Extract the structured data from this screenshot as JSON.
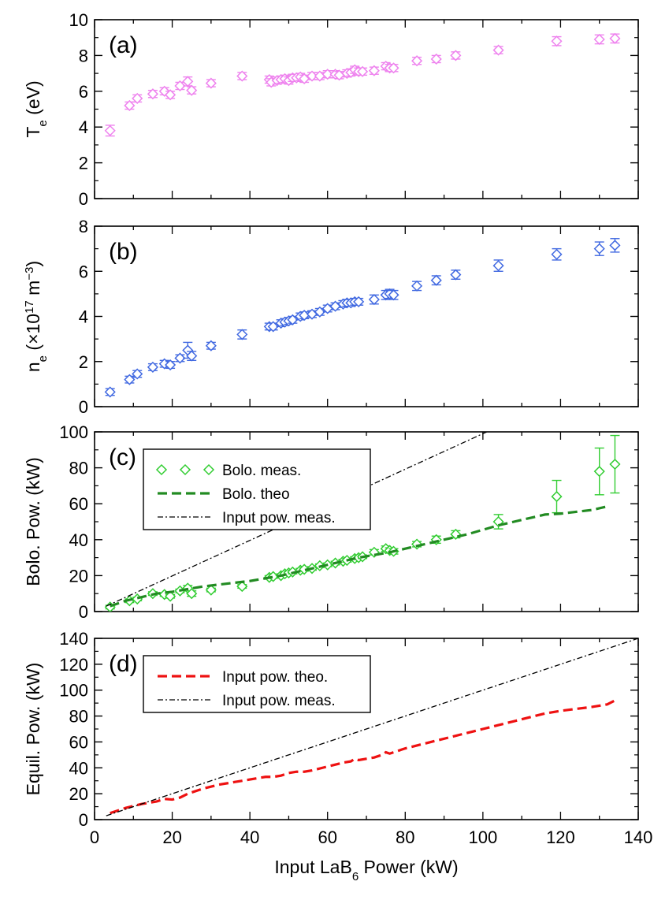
{
  "colors": {
    "te": "#ee82ee",
    "ne": "#4169e1",
    "bolo_meas": "#32cd32",
    "bolo_theo": "#228b22",
    "input_theo": "#ee1111",
    "input_meas": "#000000"
  },
  "chart_data": [
    {
      "type": "scatter",
      "panel_label": "(a)",
      "ylabel": {
        "main": "T",
        "sub": "e",
        "rest": " (eV)"
      },
      "xlim": [
        0,
        140
      ],
      "ylim": [
        0,
        10
      ],
      "yticks": [
        "0",
        "2",
        "4",
        "6",
        "8",
        "10"
      ],
      "series": [
        {
          "name": "Te",
          "marker": "diamond",
          "color_key": "te",
          "points": [
            [
              4,
              3.8,
              0.3
            ],
            [
              9,
              5.2,
              0.2
            ],
            [
              11,
              5.6,
              0.2
            ],
            [
              15,
              5.85,
              0.2
            ],
            [
              18,
              6.0,
              0.2
            ],
            [
              19.5,
              5.8,
              0.2
            ],
            [
              22,
              6.3,
              0.2
            ],
            [
              24,
              6.55,
              0.25
            ],
            [
              25,
              6.05,
              0.2
            ],
            [
              30,
              6.45,
              0.2
            ],
            [
              38,
              6.85,
              0.2
            ],
            [
              45,
              6.65,
              0.2
            ],
            [
              45.5,
              6.5,
              0.2
            ],
            [
              47,
              6.6,
              0.2
            ],
            [
              48,
              6.65,
              0.2
            ],
            [
              49,
              6.7,
              0.2
            ],
            [
              50,
              6.6,
              0.2
            ],
            [
              51,
              6.75,
              0.2
            ],
            [
              52,
              6.75,
              0.2
            ],
            [
              53,
              6.8,
              0.2
            ],
            [
              54,
              6.7,
              0.2
            ],
            [
              56,
              6.85,
              0.2
            ],
            [
              58,
              6.85,
              0.2
            ],
            [
              60,
              6.95,
              0.2
            ],
            [
              62,
              6.95,
              0.2
            ],
            [
              63,
              6.9,
              0.2
            ],
            [
              65,
              7.0,
              0.2
            ],
            [
              66,
              7.05,
              0.2
            ],
            [
              67,
              7.2,
              0.2
            ],
            [
              68,
              7.1,
              0.2
            ],
            [
              69,
              7.1,
              0.2
            ],
            [
              72,
              7.15,
              0.2
            ],
            [
              75,
              7.4,
              0.2
            ],
            [
              76,
              7.3,
              0.2
            ],
            [
              77,
              7.3,
              0.2
            ],
            [
              83,
              7.7,
              0.2
            ],
            [
              88,
              7.8,
              0.2
            ],
            [
              93,
              8.0,
              0.2
            ],
            [
              104,
              8.3,
              0.2
            ],
            [
              119,
              8.8,
              0.25
            ],
            [
              130,
              8.9,
              0.25
            ],
            [
              134,
              8.95,
              0.25
            ]
          ]
        }
      ]
    },
    {
      "type": "scatter",
      "panel_label": "(b)",
      "ylabel": {
        "main": "n",
        "sub": "e",
        "rest": " (×10",
        "sup": "17",
        "rest2": " m",
        "sup2": "−3",
        "rest3": ")"
      },
      "xlim": [
        0,
        140
      ],
      "ylim": [
        0,
        8
      ],
      "yticks": [
        "0",
        "2",
        "4",
        "6",
        "8"
      ],
      "series": [
        {
          "name": "ne",
          "marker": "diamond",
          "color_key": "ne",
          "points": [
            [
              4,
              0.65,
              0.15
            ],
            [
              9,
              1.2,
              0.15
            ],
            [
              11,
              1.45,
              0.15
            ],
            [
              15,
              1.75,
              0.15
            ],
            [
              18,
              1.9,
              0.15
            ],
            [
              19.5,
              1.85,
              0.15
            ],
            [
              22,
              2.15,
              0.15
            ],
            [
              24,
              2.5,
              0.35
            ],
            [
              25,
              2.25,
              0.2
            ],
            [
              30,
              2.7,
              0.15
            ],
            [
              38,
              3.2,
              0.2
            ],
            [
              45,
              3.55,
              0.15
            ],
            [
              46,
              3.55,
              0.15
            ],
            [
              48,
              3.7,
              0.15
            ],
            [
              49,
              3.75,
              0.15
            ],
            [
              50,
              3.8,
              0.15
            ],
            [
              51,
              3.85,
              0.15
            ],
            [
              53,
              4.0,
              0.15
            ],
            [
              54,
              4.05,
              0.15
            ],
            [
              56,
              4.1,
              0.15
            ],
            [
              58,
              4.2,
              0.15
            ],
            [
              60,
              4.35,
              0.15
            ],
            [
              62,
              4.45,
              0.15
            ],
            [
              64,
              4.55,
              0.15
            ],
            [
              65,
              4.6,
              0.15
            ],
            [
              66,
              4.6,
              0.15
            ],
            [
              67,
              4.65,
              0.15
            ],
            [
              68,
              4.65,
              0.15
            ],
            [
              72,
              4.75,
              0.2
            ],
            [
              75,
              4.95,
              0.2
            ],
            [
              76,
              5.0,
              0.2
            ],
            [
              77,
              4.95,
              0.2
            ],
            [
              83,
              5.35,
              0.2
            ],
            [
              88,
              5.6,
              0.2
            ],
            [
              93,
              5.85,
              0.2
            ],
            [
              104,
              6.25,
              0.25
            ],
            [
              119,
              6.75,
              0.25
            ],
            [
              130,
              7.0,
              0.3
            ],
            [
              134,
              7.15,
              0.3
            ]
          ]
        }
      ]
    },
    {
      "type": "scatter+line",
      "panel_label": "(c)",
      "ylabel": {
        "main": "Bolo. Pow. (kW)"
      },
      "xlim": [
        0,
        140
      ],
      "ylim": [
        0,
        100
      ],
      "yticks": [
        "0",
        "20",
        "40",
        "60",
        "80",
        "100"
      ],
      "legend": [
        "Bolo. meas.",
        "Bolo. theo",
        "Input pow. meas."
      ],
      "series": [
        {
          "name": "Bolo. meas.",
          "marker": "diamond",
          "color_key": "bolo_meas",
          "points": [
            [
              4,
              2.5,
              1
            ],
            [
              9,
              6,
              1
            ],
            [
              11,
              7,
              1
            ],
            [
              15,
              10,
              1
            ],
            [
              18,
              9.5,
              1
            ],
            [
              19.5,
              8.5,
              1
            ],
            [
              22,
              11.5,
              1
            ],
            [
              24,
              13,
              1.5
            ],
            [
              25,
              10,
              1.5
            ],
            [
              30,
              12,
              1
            ],
            [
              38,
              14,
              1
            ],
            [
              45,
              19,
              1
            ],
            [
              46,
              19.5,
              1
            ],
            [
              48,
              20,
              1
            ],
            [
              49,
              21,
              1
            ],
            [
              50,
              21.5,
              1
            ],
            [
              51,
              22,
              1
            ],
            [
              53,
              23,
              1
            ],
            [
              54,
              23.5,
              1
            ],
            [
              56,
              24,
              1
            ],
            [
              58,
              25.5,
              1
            ],
            [
              60,
              26,
              1
            ],
            [
              62,
              27,
              1
            ],
            [
              64,
              28,
              1
            ],
            [
              65,
              28.5,
              1
            ],
            [
              67,
              29.5,
              1
            ],
            [
              68,
              30,
              1
            ],
            [
              69,
              30.5,
              1
            ],
            [
              72,
              33,
              1.5
            ],
            [
              75,
              35,
              1.5
            ],
            [
              76,
              34,
              1.5
            ],
            [
              77,
              33.5,
              1.5
            ],
            [
              83,
              37.5,
              1.5
            ],
            [
              88,
              40,
              2
            ],
            [
              93,
              43,
              2
            ],
            [
              104,
              50,
              4
            ],
            [
              119,
              64,
              9
            ],
            [
              130,
              78,
              13
            ],
            [
              134,
              82,
              16
            ]
          ]
        },
        {
          "name": "Bolo. theo",
          "style": "dashed",
          "color_key": "bolo_theo",
          "x": [
            4,
            8,
            12,
            16,
            20,
            24,
            28,
            32,
            36,
            40,
            44,
            48,
            52,
            56,
            60,
            64,
            68,
            72,
            76,
            80,
            84,
            88,
            92,
            96,
            100,
            104,
            108,
            112,
            116,
            120,
            124,
            128,
            132
          ],
          "y": [
            3,
            6,
            8,
            10,
            11,
            12.5,
            14,
            15,
            16,
            17,
            18.5,
            20,
            22,
            24,
            26,
            28,
            30,
            31.5,
            33,
            35,
            37,
            39,
            41,
            43,
            45.5,
            48,
            50,
            52,
            54,
            54.5,
            55.5,
            56.5,
            58.5
          ]
        },
        {
          "name": "Input pow. meas.",
          "style": "dashdot",
          "color_key": "input_meas",
          "x": [
            3,
            101
          ],
          "y": [
            3,
            100
          ]
        }
      ]
    },
    {
      "type": "line",
      "panel_label": "(d)",
      "ylabel": {
        "main": "Equil. Pow. (kW)"
      },
      "xlabel": {
        "main": "Input LaB",
        "sub": "6",
        "rest": " Power (kW)"
      },
      "xlim": [
        0,
        140
      ],
      "ylim": [
        0,
        140
      ],
      "xticks": [
        "0",
        "20",
        "40",
        "60",
        "80",
        "100",
        "120",
        "140"
      ],
      "yticks": [
        "0",
        "20",
        "40",
        "60",
        "80",
        "100",
        "120",
        "140"
      ],
      "legend": [
        "Input pow. theo.",
        "Input pow. meas."
      ],
      "series": [
        {
          "name": "Input pow. theo.",
          "style": "dashed",
          "color_key": "input_theo",
          "x": [
            4,
            8,
            12,
            16,
            18,
            20,
            22,
            24,
            28,
            32,
            36,
            40,
            44,
            46,
            48,
            50,
            52,
            54,
            56,
            60,
            64,
            66,
            67,
            68,
            72,
            74,
            75,
            76,
            80,
            84,
            88,
            92,
            96,
            100,
            104,
            108,
            112,
            116,
            120,
            124,
            128,
            132,
            134
          ],
          "y": [
            5,
            9,
            12,
            14,
            16,
            15.5,
            17,
            20,
            24,
            27,
            29,
            31,
            33,
            33,
            34,
            36,
            37,
            37,
            38,
            41,
            44,
            45,
            47,
            46,
            48,
            50,
            52,
            51,
            55,
            58,
            61,
            64,
            67,
            70,
            73,
            76,
            79,
            82,
            84,
            85.5,
            87,
            89,
            92
          ]
        },
        {
          "name": "Input pow. meas.",
          "style": "dashdot",
          "color_key": "input_meas",
          "x": [
            3,
            140
          ],
          "y": [
            3,
            140
          ]
        }
      ]
    }
  ]
}
